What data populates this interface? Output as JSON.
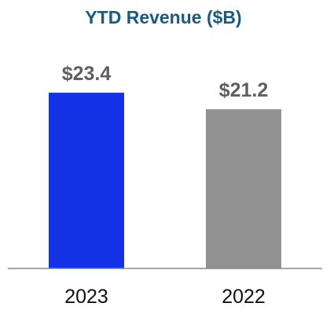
{
  "chart_data": {
    "type": "bar",
    "title": "YTD Revenue ($B)",
    "categories": [
      "2023",
      "2022"
    ],
    "values": [
      23.4,
      21.2
    ],
    "data_labels": [
      "$23.4",
      "$21.2"
    ],
    "ylim": [
      0,
      27.8
    ],
    "grid": false,
    "legend": "none",
    "xlabel": "",
    "ylabel": ""
  },
  "colors": {
    "title": "#1a5a7e",
    "bars": [
      "#1533e6",
      "#929292"
    ],
    "data_label": "#5f5f5f",
    "tick_label": "#111111",
    "axis": "#888888"
  }
}
